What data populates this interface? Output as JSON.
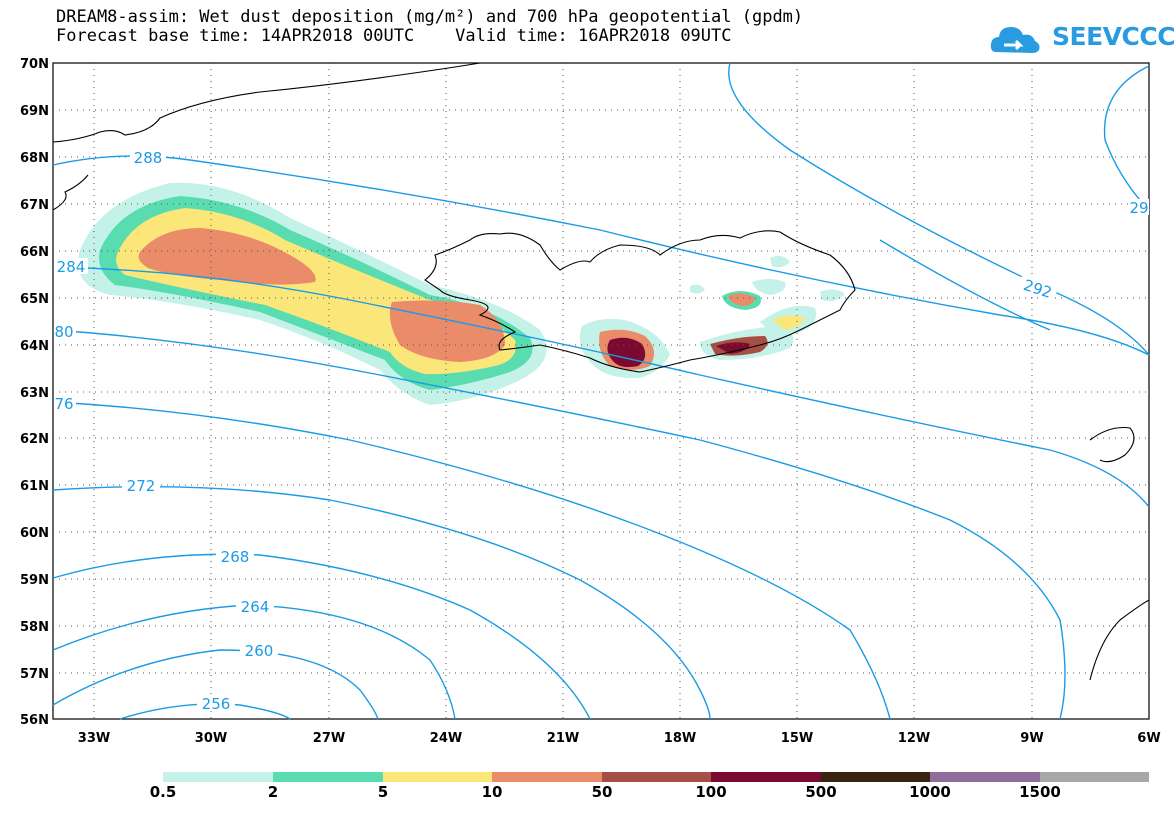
{
  "title": {
    "line1": "DREAM8-assim: Wet dust deposition (mg/m²) and 700 hPa geopotential (gpdm)",
    "line2": "Forecast base time: 14APR2018 00UTC    Valid time: 16APR2018 09UTC"
  },
  "logo": {
    "text": "SEEVCCC",
    "icon": "cloud-icon",
    "color": "#2a9be0"
  },
  "map": {
    "lat_labels": [
      "70N",
      "69N",
      "68N",
      "67N",
      "66N",
      "65N",
      "64N",
      "63N",
      "62N",
      "61N",
      "60N",
      "59N",
      "58N",
      "57N",
      "56N"
    ],
    "lon_labels": [
      "33W",
      "30W",
      "27W",
      "24W",
      "21W",
      "18W",
      "15W",
      "12W",
      "9W",
      "6W"
    ],
    "contour_labels": [
      "288",
      "284",
      "80",
      "76",
      "272",
      "268",
      "264",
      "260",
      "256",
      "292",
      "29"
    ],
    "contour_color": "#1a9be6",
    "coastline_color": "#000000"
  },
  "legend": {
    "labels": [
      "0.5",
      "2",
      "5",
      "10",
      "50",
      "100",
      "500",
      "1000",
      "1500"
    ],
    "colors": [
      "#c4f1e8",
      "#59dcb0",
      "#fbe67a",
      "#ea8b6a",
      "#a84f45",
      "#7a0a30",
      "#3a2512",
      "#8f6e9e",
      "#a8a8a8"
    ]
  }
}
